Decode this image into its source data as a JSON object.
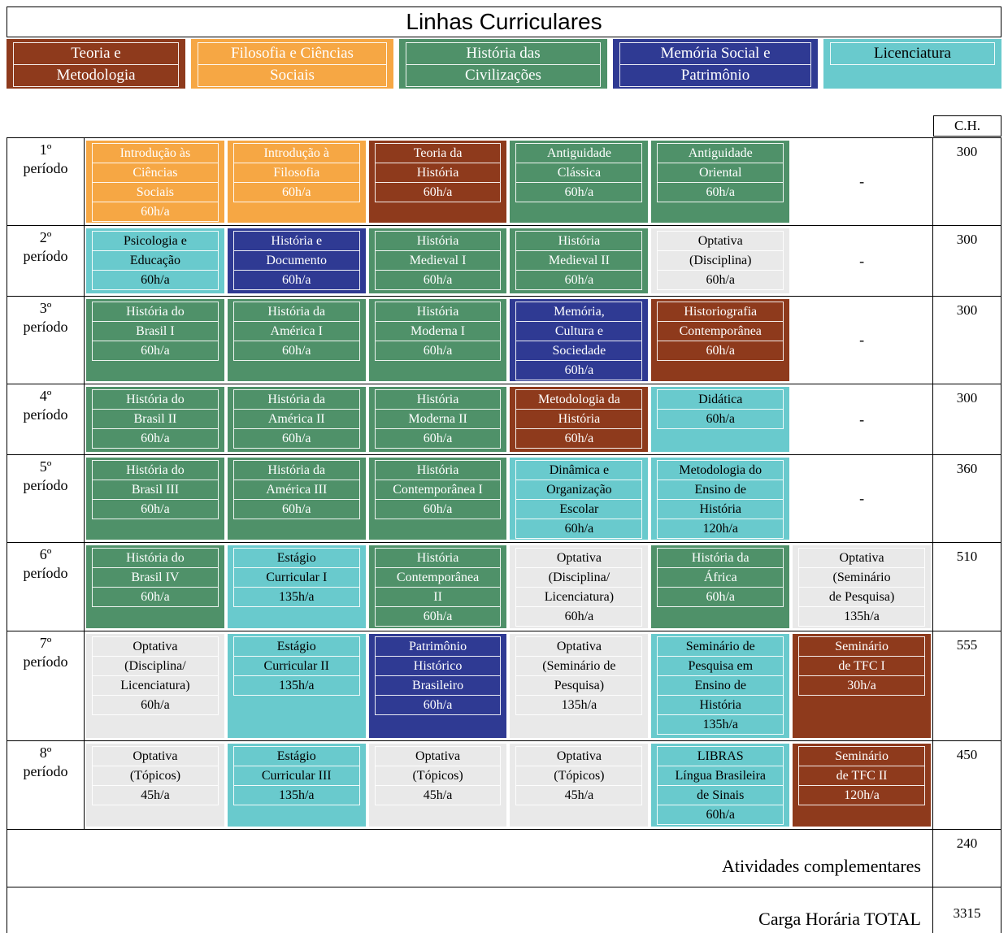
{
  "title": "Linhas Curriculares",
  "ch_header": "C.H.",
  "empty_label": "-",
  "categories": {
    "teoria": {
      "label": "Teoria e Metodologia",
      "bg": "#8e3a1c",
      "text": "#ffffff"
    },
    "filosofia": {
      "label": "Filosofia e Ciências Sociais",
      "bg": "#f6a744",
      "text": "#ffffff"
    },
    "historia": {
      "label": "História das Civilizações",
      "bg": "#4f9169",
      "text": "#ffffff"
    },
    "memoria": {
      "label": "Memória Social e Patrimônio",
      "bg": "#2f3a93",
      "text": "#ffffff"
    },
    "licenciatura": {
      "label": "Licenciatura",
      "bg": "#69cacd",
      "text": "#000000"
    },
    "optativa": {
      "label": "Optativa",
      "bg": "#e9e9e9",
      "text": "#000000"
    }
  },
  "legend": [
    {
      "category": "teoria",
      "lines": [
        "Teoria e",
        "Metodologia"
      ]
    },
    {
      "category": "filosofia",
      "lines": [
        "Filosofia e Ciências",
        "Sociais"
      ]
    },
    {
      "category": "historia",
      "lines": [
        "História das",
        "Civilizações"
      ]
    },
    {
      "category": "memoria",
      "lines": [
        "Memória Social e",
        "Patrimônio"
      ]
    },
    {
      "category": "licenciatura",
      "lines": [
        "Licenciatura"
      ]
    }
  ],
  "rows": [
    {
      "period_lines": [
        "1º",
        "período"
      ],
      "ch": "300",
      "cells": [
        {
          "lines": [
            "Introdução às",
            "Ciências",
            "Sociais"
          ],
          "hours": "60h/a",
          "category": "filosofia"
        },
        {
          "lines": [
            "Introdução à",
            "Filosofia"
          ],
          "hours": "60h/a",
          "category": "filosofia"
        },
        {
          "lines": [
            "Teoria da",
            "História"
          ],
          "hours": "60h/a",
          "category": "teoria"
        },
        {
          "lines": [
            "Antiguidade",
            "Clássica"
          ],
          "hours": "60h/a",
          "category": "historia"
        },
        {
          "lines": [
            "Antiguidade",
            "Oriental"
          ],
          "hours": "60h/a",
          "category": "historia"
        },
        null
      ]
    },
    {
      "period_lines": [
        "2º",
        "período"
      ],
      "ch": "300",
      "cells": [
        {
          "lines": [
            "Psicologia e",
            "Educação"
          ],
          "hours": "60h/a",
          "category": "licenciatura"
        },
        {
          "lines": [
            "História e",
            "Documento"
          ],
          "hours": "60h/a",
          "category": "memoria"
        },
        {
          "lines": [
            "História",
            "Medieval I"
          ],
          "hours": "60h/a",
          "category": "historia"
        },
        {
          "lines": [
            "História",
            "Medieval II"
          ],
          "hours": "60h/a",
          "category": "historia"
        },
        {
          "lines": [
            "Optativa",
            "(Disciplina)"
          ],
          "hours": "60h/a",
          "category": "optativa"
        },
        null
      ]
    },
    {
      "period_lines": [
        "3º",
        "período"
      ],
      "ch": "300",
      "cells": [
        {
          "lines": [
            "História do",
            "Brasil I"
          ],
          "hours": "60h/a",
          "category": "historia"
        },
        {
          "lines": [
            "História da",
            "América I"
          ],
          "hours": "60h/a",
          "category": "historia"
        },
        {
          "lines": [
            "História",
            "Moderna I"
          ],
          "hours": "60h/a",
          "category": "historia"
        },
        {
          "lines": [
            "Memória,",
            "Cultura e",
            "Sociedade"
          ],
          "hours": "60h/a",
          "category": "memoria"
        },
        {
          "lines": [
            "Historiografia",
            "Contemporânea"
          ],
          "hours": "60h/a",
          "category": "teoria"
        },
        null
      ]
    },
    {
      "period_lines": [
        "4º",
        "período"
      ],
      "ch": "300",
      "cells": [
        {
          "lines": [
            "História do",
            "Brasil II"
          ],
          "hours": "60h/a",
          "category": "historia"
        },
        {
          "lines": [
            "História da",
            "América II"
          ],
          "hours": "60h/a",
          "category": "historia"
        },
        {
          "lines": [
            "História",
            "Moderna II"
          ],
          "hours": "60h/a",
          "category": "historia"
        },
        {
          "lines": [
            "Metodologia da",
            "História"
          ],
          "hours": "60h/a",
          "category": "teoria"
        },
        {
          "lines": [
            "Didática"
          ],
          "hours": "60h/a",
          "category": "licenciatura"
        },
        null
      ]
    },
    {
      "period_lines": [
        "5º",
        "período"
      ],
      "ch": "360",
      "cells": [
        {
          "lines": [
            "História do",
            "Brasil III"
          ],
          "hours": "60h/a",
          "category": "historia"
        },
        {
          "lines": [
            "História da",
            "América III"
          ],
          "hours": "60h/a",
          "category": "historia"
        },
        {
          "lines": [
            "História",
            "Contemporânea I"
          ],
          "hours": "60h/a",
          "category": "historia"
        },
        {
          "lines": [
            "Dinâmica e",
            "Organização",
            "Escolar"
          ],
          "hours": "60h/a",
          "category": "licenciatura"
        },
        {
          "lines": [
            "Metodologia do",
            "Ensino de",
            "História"
          ],
          "hours": "120h/a",
          "category": "licenciatura"
        },
        null
      ]
    },
    {
      "period_lines": [
        "6º",
        "período"
      ],
      "ch": "510",
      "cells": [
        {
          "lines": [
            "História do",
            "Brasil IV"
          ],
          "hours": "60h/a",
          "category": "historia"
        },
        {
          "lines": [
            "Estágio",
            "Curricular I"
          ],
          "hours": "135h/a",
          "category": "licenciatura"
        },
        {
          "lines": [
            "História",
            "Contemporânea",
            "II"
          ],
          "hours": "60h/a",
          "category": "historia"
        },
        {
          "lines": [
            "Optativa",
            "(Disciplina/",
            "Licenciatura)"
          ],
          "hours": "60h/a",
          "category": "optativa"
        },
        {
          "lines": [
            "História da",
            "África"
          ],
          "hours": "60h/a",
          "category": "historia"
        },
        {
          "lines": [
            "Optativa",
            "(Seminário",
            "de Pesquisa)"
          ],
          "hours": "135h/a",
          "category": "optativa"
        }
      ]
    },
    {
      "period_lines": [
        "7º",
        "período"
      ],
      "ch": "555",
      "cells": [
        {
          "lines": [
            "Optativa",
            "(Disciplina/",
            "Licenciatura)"
          ],
          "hours": "60h/a",
          "category": "optativa"
        },
        {
          "lines": [
            "Estágio",
            "Curricular II"
          ],
          "hours": "135h/a",
          "category": "licenciatura"
        },
        {
          "lines": [
            "Patrimônio",
            "Histórico",
            "Brasileiro"
          ],
          "hours": "60h/a",
          "category": "memoria"
        },
        {
          "lines": [
            "Optativa",
            "(Seminário de",
            "Pesquisa)"
          ],
          "hours": "135h/a",
          "category": "optativa"
        },
        {
          "lines": [
            "Seminário de",
            "Pesquisa em",
            "Ensino de",
            "História"
          ],
          "hours": "135h/a",
          "category": "licenciatura"
        },
        {
          "lines": [
            "Seminário",
            "de TFC I"
          ],
          "hours": "30h/a",
          "category": "teoria"
        }
      ]
    },
    {
      "period_lines": [
        "8º",
        "período"
      ],
      "ch": "450",
      "cells": [
        {
          "lines": [
            "Optativa",
            "(Tópicos)"
          ],
          "hours": "45h/a",
          "category": "optativa"
        },
        {
          "lines": [
            "Estágio",
            "Curricular III"
          ],
          "hours": "135h/a",
          "category": "licenciatura"
        },
        {
          "lines": [
            "Optativa",
            "(Tópicos)"
          ],
          "hours": "45h/a",
          "category": "optativa"
        },
        {
          "lines": [
            "Optativa",
            "(Tópicos)"
          ],
          "hours": "45h/a",
          "category": "optativa"
        },
        {
          "lines": [
            "LIBRAS",
            "Língua Brasileira",
            "de Sinais"
          ],
          "hours": "60h/a",
          "category": "licenciatura"
        },
        {
          "lines": [
            "Seminário",
            "de TFC II"
          ],
          "hours": "120h/a",
          "category": "teoria"
        }
      ]
    }
  ],
  "footer_rows": [
    {
      "label": "Atividades complementares",
      "value": "240"
    },
    {
      "label": "Carga Horária TOTAL",
      "value": "3315"
    }
  ]
}
